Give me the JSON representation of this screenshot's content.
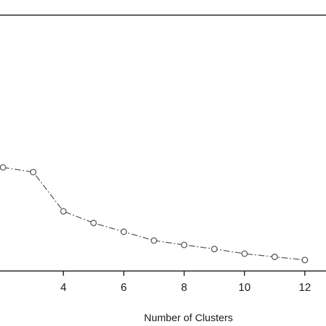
{
  "chart_data": {
    "type": "line",
    "title": "",
    "xlabel": "Number of Clusters",
    "ylabel": "",
    "x": [
      2,
      3,
      4,
      5,
      6,
      7,
      8,
      9,
      10,
      11,
      12
    ],
    "series": [
      {
        "values": [
          3.05,
          2.9,
          1.65,
          1.28,
          1.0,
          0.72,
          0.58,
          0.45,
          0.3,
          0.2,
          0.1
        ]
      }
    ],
    "xticks": [
      "4",
      "6",
      "8",
      "10",
      "12"
    ],
    "xlim": [
      1.9,
      12.7
    ],
    "ylim": [
      -0.25,
      7.9
    ],
    "grid": false,
    "marker": "open-circle",
    "line_style": "dash-dot",
    "colors": {
      "line": "#555555",
      "marker_edge": "#555555",
      "marker_fill": "#ffffff",
      "axes": "#222222"
    }
  }
}
